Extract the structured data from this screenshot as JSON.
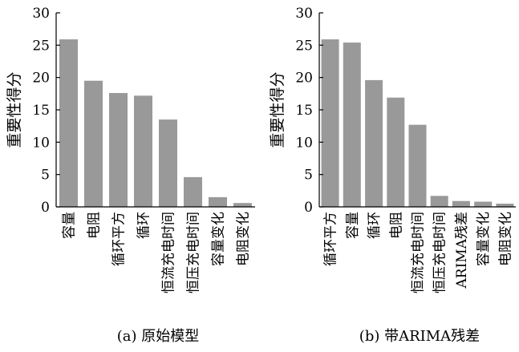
{
  "chart_data": [
    {
      "type": "bar",
      "caption": "(a)  原始模型",
      "ylabel": "重要性得分",
      "ylim": [
        0,
        30
      ],
      "yticks": [
        0,
        5,
        10,
        15,
        20,
        25,
        30
      ],
      "categories": [
        "容量",
        "电阻",
        "循环平方",
        "循环",
        "恒流充电时间",
        "恒压充电时间",
        "容量变化",
        "电阻变化"
      ],
      "values": [
        25.9,
        19.5,
        17.6,
        17.2,
        13.5,
        4.6,
        1.5,
        0.6
      ],
      "color": "#999999"
    },
    {
      "type": "bar",
      "caption": "(b)  带ARIMA残差",
      "ylabel": "重要性得分",
      "ylim": [
        0,
        30
      ],
      "yticks": [
        0,
        5,
        10,
        15,
        20,
        25,
        30
      ],
      "categories": [
        "循环平方",
        "容量",
        "循环",
        "电阻",
        "恒流充电时间",
        "恒压充电时间",
        "ARIMA残差",
        "容量变化",
        "电阻变化"
      ],
      "values": [
        25.9,
        25.4,
        19.6,
        16.9,
        12.7,
        1.7,
        0.9,
        0.8,
        0.5
      ],
      "color": "#999999"
    }
  ]
}
